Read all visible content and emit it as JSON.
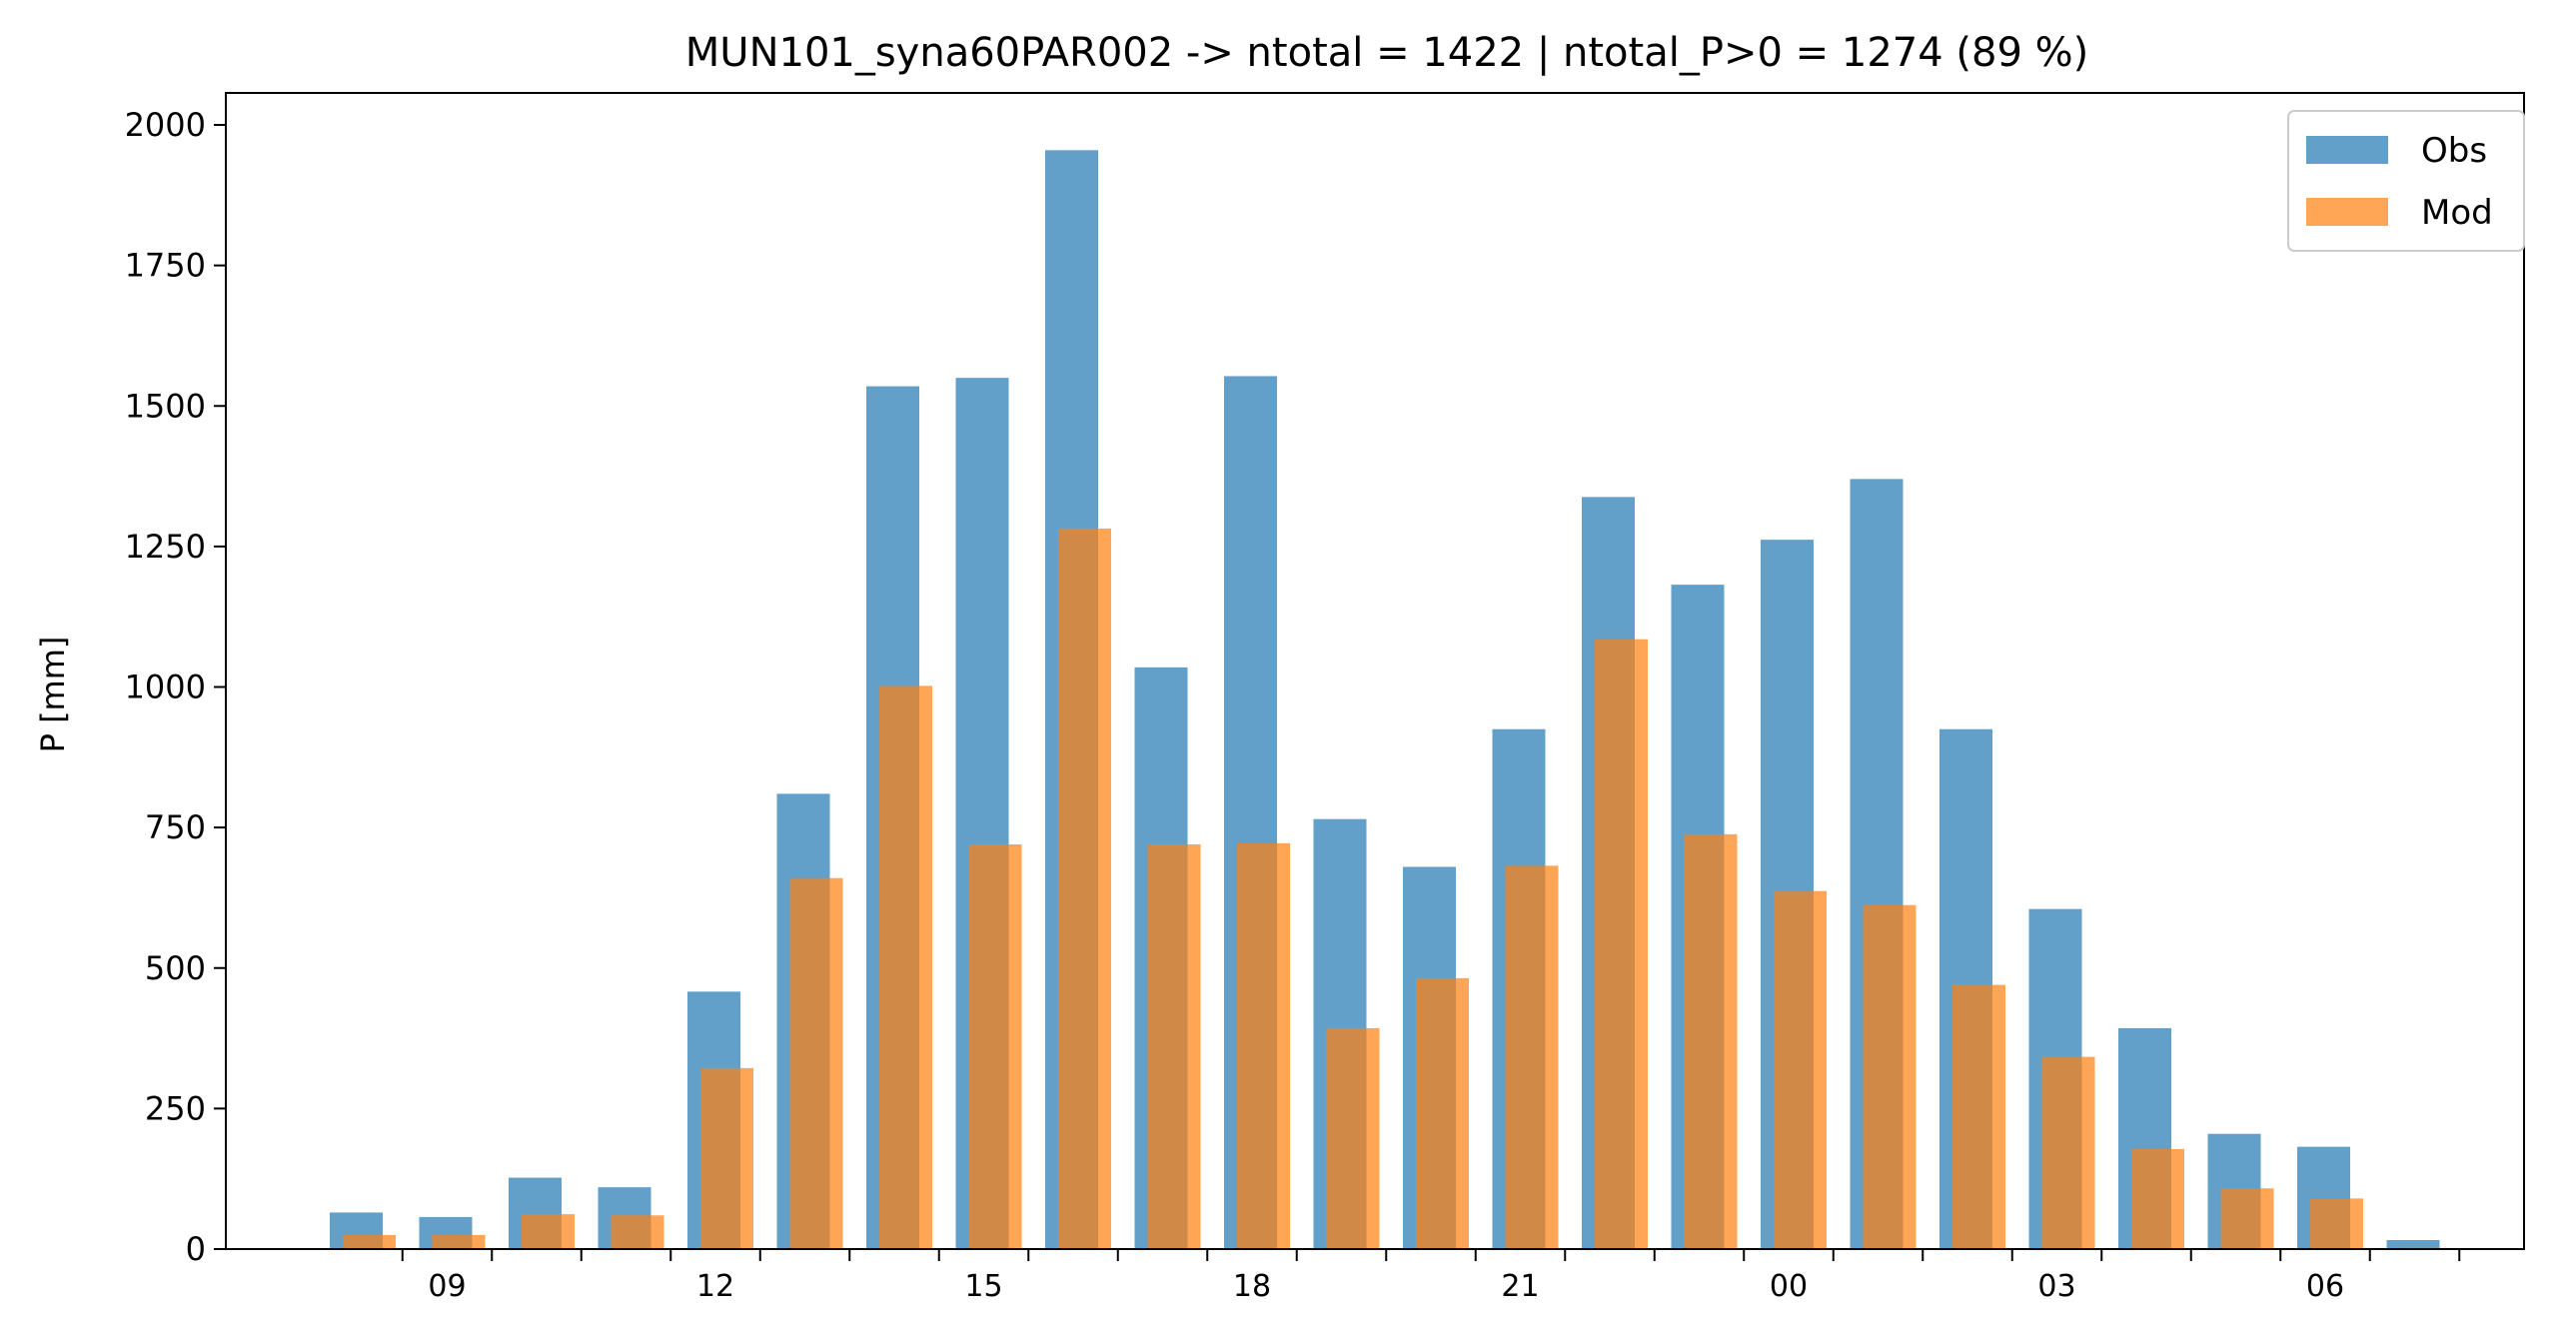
{
  "chart_data": {
    "type": "bar",
    "title": "MUN101_syna60PAR002 -> ntotal = 1422 | ntotal_P>0 = 1274 (89 %)",
    "xlabel": "",
    "ylabel": "P [mm]",
    "ylim": [
      0,
      2050
    ],
    "yticks": [
      0,
      250,
      500,
      750,
      1000,
      1250,
      1500,
      1750,
      2000
    ],
    "grid": false,
    "legend_placement": "top-right",
    "x_hours": [
      8,
      9,
      10,
      11,
      12,
      13,
      14,
      15,
      16,
      17,
      18,
      19,
      20,
      21,
      22,
      23,
      24,
      25,
      26,
      27,
      28,
      29,
      30,
      31
    ],
    "x_tick_labels": [
      {
        "hour": 9,
        "label": "09"
      },
      {
        "hour": 12,
        "label": "12"
      },
      {
        "hour": 15,
        "label": "15"
      },
      {
        "hour": 18,
        "label": "18"
      },
      {
        "hour": 21,
        "label": "21"
      },
      {
        "hour": 24,
        "label": "00"
      },
      {
        "hour": 27,
        "label": "03"
      },
      {
        "hour": 30,
        "label": "06"
      }
    ],
    "series": [
      {
        "name": "Obs",
        "color": "#1f77b4",
        "values": [
          65,
          57,
          127,
          110,
          458,
          810,
          1535,
          1550,
          1955,
          1035,
          1553,
          765,
          680,
          925,
          1338,
          1182,
          1262,
          1370,
          925,
          605,
          393,
          205,
          182,
          16
        ]
      },
      {
        "name": "Mod",
        "color": "#ff7f0e",
        "values": [
          25,
          25,
          62,
          60,
          322,
          660,
          1002,
          720,
          1282,
          720,
          722,
          393,
          482,
          682,
          1085,
          738,
          637,
          612,
          470,
          342,
          178,
          108,
          90,
          2
        ]
      }
    ]
  }
}
